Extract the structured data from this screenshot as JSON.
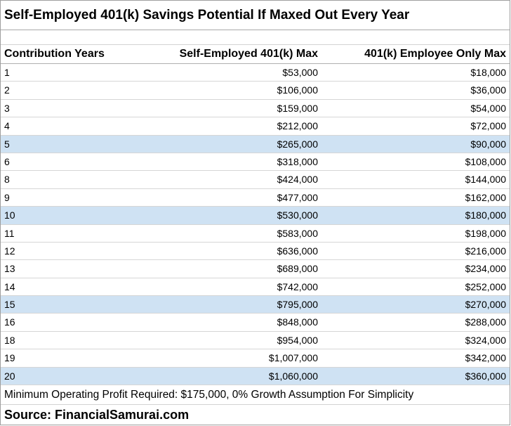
{
  "title": "Self-Employed 401(k) Savings Potential If Maxed Out Every Year",
  "columns": {
    "years": "Contribution Years",
    "self_employed": "Self-Employed 401(k) Max",
    "employee_only": "401(k) Employee Only Max"
  },
  "highlight_color": "#cfe2f3",
  "rows": [
    {
      "year": "1",
      "self": "$53,000",
      "emp": "$18,000",
      "hl": false
    },
    {
      "year": "2",
      "self": "$106,000",
      "emp": "$36,000",
      "hl": false
    },
    {
      "year": "3",
      "self": "$159,000",
      "emp": "$54,000",
      "hl": false
    },
    {
      "year": "4",
      "self": "$212,000",
      "emp": "$72,000",
      "hl": false
    },
    {
      "year": "5",
      "self": "$265,000",
      "emp": "$90,000",
      "hl": true
    },
    {
      "year": "6",
      "self": "$318,000",
      "emp": "$108,000",
      "hl": false
    },
    {
      "year": "8",
      "self": "$424,000",
      "emp": "$144,000",
      "hl": false
    },
    {
      "year": "9",
      "self": "$477,000",
      "emp": "$162,000",
      "hl": false
    },
    {
      "year": "10",
      "self": "$530,000",
      "emp": "$180,000",
      "hl": true
    },
    {
      "year": "11",
      "self": "$583,000",
      "emp": "$198,000",
      "hl": false
    },
    {
      "year": "12",
      "self": "$636,000",
      "emp": "$216,000",
      "hl": false
    },
    {
      "year": "13",
      "self": "$689,000",
      "emp": "$234,000",
      "hl": false
    },
    {
      "year": "14",
      "self": "$742,000",
      "emp": "$252,000",
      "hl": false
    },
    {
      "year": "15",
      "self": "$795,000",
      "emp": "$270,000",
      "hl": true
    },
    {
      "year": "16",
      "self": "$848,000",
      "emp": "$288,000",
      "hl": false
    },
    {
      "year": "18",
      "self": "$954,000",
      "emp": "$324,000",
      "hl": false
    },
    {
      "year": "19",
      "self": "$1,007,000",
      "emp": "$342,000",
      "hl": false
    },
    {
      "year": "20",
      "self": "$1,060,000",
      "emp": "$360,000",
      "hl": true
    }
  ],
  "footer": {
    "note": "Minimum Operating Profit Required: $175,000, 0% Growth Assumption For Simplicity",
    "source": "Source: FinancialSamurai.com"
  }
}
